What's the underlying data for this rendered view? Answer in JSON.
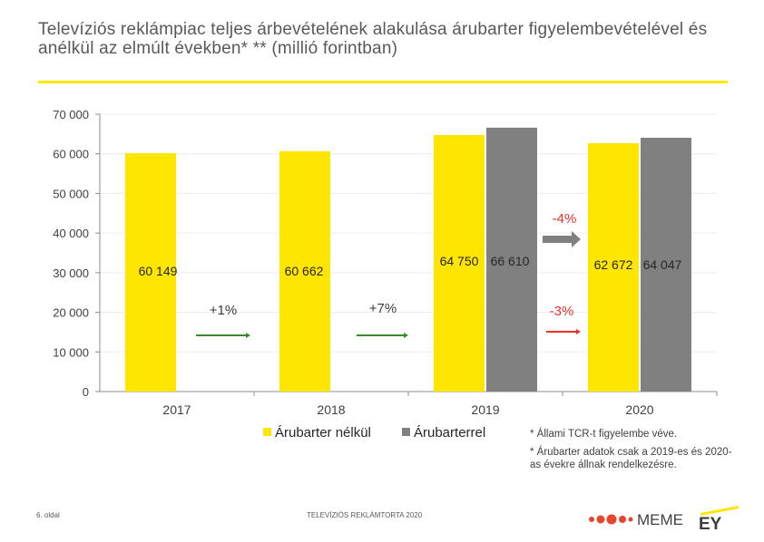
{
  "title": "Televíziós reklámpiac teljes árbevételének alakulása árubarter figyelembevételével és anélkül az elmúlt években* ** (millió forintban)",
  "chart_data": {
    "type": "bar",
    "categories": [
      "2017",
      "2018",
      "2019",
      "2020"
    ],
    "series": [
      {
        "name": "Árubarter nélkül",
        "values": [
          60149,
          60662,
          64750,
          62672
        ],
        "labels": [
          "60 149",
          "60 662",
          "64 750",
          "62 672"
        ],
        "color": "#ffe600"
      },
      {
        "name": "Árubarterrel",
        "values": [
          null,
          null,
          66610,
          64047
        ],
        "labels": [
          "",
          "",
          "66 610",
          "64 047"
        ],
        "color": "#808080"
      }
    ],
    "ylim": [
      0,
      70000
    ],
    "yticks": [
      0,
      10000,
      20000,
      30000,
      40000,
      50000,
      60000,
      70000
    ],
    "ytick_labels": [
      "0",
      "10 000",
      "20 000",
      "30 000",
      "40 000",
      "50 000",
      "60 000",
      "70 000"
    ],
    "grid": true,
    "legend": "bottom-center",
    "annotations": [
      {
        "text": "+1%",
        "color": "#3b3b3b",
        "arrow": "#3a8a2e",
        "value_level": 19000
      },
      {
        "text": "+7%",
        "color": "#3b3b3b",
        "arrow": "#3a8a2e",
        "value_level": 19000
      },
      {
        "text": "-3%",
        "color": "#e8332a",
        "arrow": "#e8332a",
        "value_level": 19000
      },
      {
        "text": "-4%",
        "color": "#e8332a",
        "arrow": "#808080",
        "value_level": 40000
      }
    ]
  },
  "notes": [
    "* Állami TCR-t figyelembe véve.",
    "* Árubarter adatok csak a 2019-es és 2020-as évekre állnak rendelkezésre."
  ],
  "footer": {
    "page": "6. oldal",
    "center": "TELEVÍZIÓS REKLÁMTORTA 2020"
  },
  "logos": {
    "meme": "MEME",
    "ey": "EY"
  }
}
